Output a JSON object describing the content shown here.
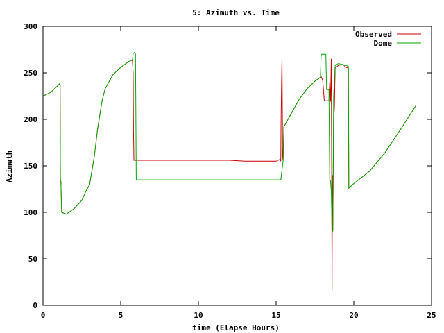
{
  "chart_data": {
    "type": "line",
    "title": "5: Azimuth vs. Time",
    "xlabel": "time (Elapse Hours)",
    "ylabel": "Azimuth",
    "xlim": [
      0,
      25
    ],
    "ylim": [
      0,
      300
    ],
    "x_ticks": [
      0,
      5,
      10,
      15,
      20,
      25
    ],
    "y_ticks": [
      0,
      50,
      100,
      150,
      200,
      250,
      300
    ],
    "grid": false,
    "legend_position": "top-right",
    "series": [
      {
        "name": "Observed",
        "color": "#cc0000",
        "points": [
          [
            0.0,
            225
          ],
          [
            0.5,
            229
          ],
          [
            1.0,
            237
          ],
          [
            1.05,
            238
          ],
          [
            1.1,
            237
          ],
          [
            1.12,
            135
          ],
          [
            1.15,
            133
          ],
          [
            1.2,
            100
          ],
          [
            1.5,
            98
          ],
          [
            2.0,
            104
          ],
          [
            2.5,
            113
          ],
          [
            2.8,
            124
          ],
          [
            3.0,
            130
          ],
          [
            3.3,
            160
          ],
          [
            3.5,
            188
          ],
          [
            3.8,
            220
          ],
          [
            4.0,
            233
          ],
          [
            4.5,
            248
          ],
          [
            5.0,
            256
          ],
          [
            5.5,
            262
          ],
          [
            5.75,
            264
          ],
          [
            5.8,
            250
          ],
          [
            5.82,
            190
          ],
          [
            5.85,
            156
          ],
          [
            6.5,
            156
          ],
          [
            8.0,
            156
          ],
          [
            10.0,
            156
          ],
          [
            12.0,
            156
          ],
          [
            13.0,
            155
          ],
          [
            14.0,
            155
          ],
          [
            15.0,
            155
          ],
          [
            15.25,
            157
          ],
          [
            15.3,
            155
          ],
          [
            15.32,
            200
          ],
          [
            15.35,
            238
          ],
          [
            15.38,
            266
          ],
          [
            15.42,
            160
          ],
          [
            15.45,
            155
          ],
          [
            15.5,
            192
          ],
          [
            16.0,
            207
          ],
          [
            16.5,
            222
          ],
          [
            17.0,
            233
          ],
          [
            17.5,
            241
          ],
          [
            17.9,
            246
          ],
          [
            18.0,
            242
          ],
          [
            18.1,
            220
          ],
          [
            18.4,
            220
          ],
          [
            18.45,
            240
          ],
          [
            18.5,
            219
          ],
          [
            18.55,
            265
          ],
          [
            18.58,
            120
          ],
          [
            18.6,
            16
          ],
          [
            18.62,
            140
          ],
          [
            18.65,
            80
          ],
          [
            18.7,
            200
          ],
          [
            18.75,
            212
          ],
          [
            18.8,
            255
          ],
          [
            19.0,
            258
          ],
          [
            19.3,
            259
          ],
          [
            19.5,
            256
          ],
          [
            19.65,
            255
          ],
          [
            19.68,
            126
          ],
          [
            20.0,
            131
          ],
          [
            21.0,
            144
          ],
          [
            22.0,
            164
          ],
          [
            23.0,
            189
          ],
          [
            24.0,
            215
          ]
        ]
      },
      {
        "name": "Dome",
        "color": "#00aa00",
        "points": [
          [
            0.0,
            225
          ],
          [
            0.5,
            229
          ],
          [
            1.0,
            237
          ],
          [
            1.05,
            238
          ],
          [
            1.1,
            237
          ],
          [
            1.12,
            135
          ],
          [
            1.15,
            133
          ],
          [
            1.2,
            100
          ],
          [
            1.5,
            98
          ],
          [
            2.0,
            104
          ],
          [
            2.5,
            113
          ],
          [
            2.8,
            124
          ],
          [
            3.0,
            130
          ],
          [
            3.3,
            160
          ],
          [
            3.5,
            188
          ],
          [
            3.8,
            220
          ],
          [
            4.0,
            233
          ],
          [
            4.5,
            248
          ],
          [
            5.0,
            256
          ],
          [
            5.5,
            262
          ],
          [
            5.75,
            264
          ],
          [
            5.8,
            271
          ],
          [
            5.9,
            272
          ],
          [
            5.95,
            270
          ],
          [
            6.0,
            135
          ],
          [
            8.0,
            135
          ],
          [
            10.0,
            135
          ],
          [
            12.0,
            135
          ],
          [
            14.0,
            135
          ],
          [
            15.0,
            135
          ],
          [
            15.3,
            135
          ],
          [
            15.45,
            155
          ],
          [
            15.5,
            192
          ],
          [
            16.0,
            207
          ],
          [
            16.5,
            222
          ],
          [
            17.0,
            233
          ],
          [
            17.5,
            241
          ],
          [
            17.85,
            245
          ],
          [
            17.9,
            270
          ],
          [
            18.0,
            270
          ],
          [
            18.2,
            270
          ],
          [
            18.25,
            232
          ],
          [
            18.4,
            232
          ],
          [
            18.45,
            134
          ],
          [
            18.5,
            134
          ],
          [
            18.55,
            122
          ],
          [
            18.6,
            78
          ],
          [
            18.65,
            80
          ],
          [
            18.7,
            225
          ],
          [
            18.8,
            258
          ],
          [
            19.0,
            260
          ],
          [
            19.3,
            259
          ],
          [
            19.5,
            258
          ],
          [
            19.65,
            257
          ],
          [
            19.68,
            126
          ],
          [
            20.0,
            131
          ],
          [
            21.0,
            144
          ],
          [
            22.0,
            164
          ],
          [
            23.0,
            189
          ],
          [
            24.0,
            215
          ]
        ]
      }
    ]
  }
}
